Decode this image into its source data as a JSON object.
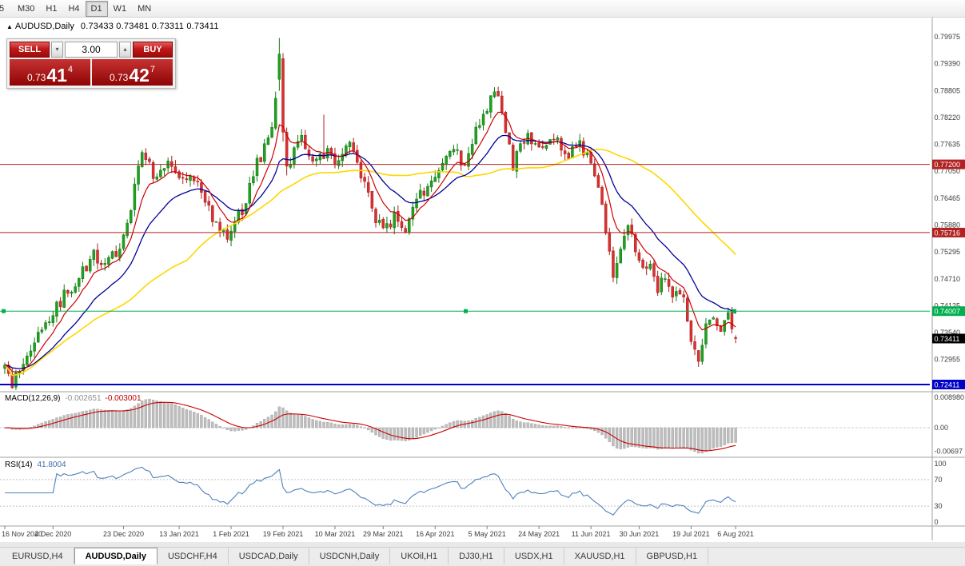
{
  "toolbar": {
    "timeframes": [
      "5",
      "M30",
      "H1",
      "H4",
      "D1",
      "W1",
      "MN"
    ],
    "active": "D1"
  },
  "chart": {
    "title": "AUDUSD,Daily",
    "ohlc": "0.73433 0.73481 0.73311 0.73411"
  },
  "trade_panel": {
    "sell_label": "SELL",
    "buy_label": "BUY",
    "volume": "3.00",
    "sell_price": {
      "big": "0.73",
      "mid": "41",
      "sup": "4"
    },
    "buy_price": {
      "big": "0.73",
      "mid": "42",
      "sup": "7"
    }
  },
  "indicators": {
    "macd": {
      "name": "MACD(12,26,9)",
      "value_main": "-0.002651",
      "value_signal": "-0.003001"
    },
    "rsi": {
      "name": "RSI(14)",
      "value": "41.8004"
    }
  },
  "tabs": [
    {
      "label": "EURUSD,H4",
      "active": false
    },
    {
      "label": "AUDUSD,Daily",
      "active": true
    },
    {
      "label": "USDCHF,H4",
      "active": false
    },
    {
      "label": "USDCAD,Daily",
      "active": false
    },
    {
      "label": "USDCNH,Daily",
      "active": false
    },
    {
      "label": "UKOil,H1",
      "active": false
    },
    {
      "label": "DJ30,H1",
      "active": false
    },
    {
      "label": "USDX,H1",
      "active": false
    },
    {
      "label": "XAUUSD,H1",
      "active": false
    },
    {
      "label": "GBPUSD,H1",
      "active": false
    }
  ],
  "chart_data": {
    "type": "candlestick",
    "symbol": "AUDUSD",
    "timeframe": "Daily",
    "bars": 198,
    "colors": {
      "up": "#1FA11F",
      "up_stroke": "#157815",
      "down": "#D93030",
      "down_stroke": "#A81F1F",
      "ma_fast": "#CC0000",
      "ma_mid": "#000099",
      "ma_slow": "#FFD700",
      "macd_hist": "#BDBDBD",
      "macd_hist_stroke": "#A3A3A3",
      "macd_signal": "#CC0000",
      "rsi_line": "#4F81BD"
    },
    "y_axis": {
      "labels": [
        "0.79975",
        "0.79390",
        "0.78805",
        "0.78220",
        "0.77635",
        "0.77050",
        "0.76465",
        "0.75880",
        "0.75295",
        "0.74710",
        "0.74125",
        "0.73540",
        "0.72955",
        "0.72370"
      ]
    },
    "x_axis": {
      "labels": [
        "16 Nov 2020",
        "4 Dec 2020",
        "23 Dec 2020",
        "13 Jan 2021",
        "1 Feb 2021",
        "19 Feb 2021",
        "10 Mar 2021",
        "29 Mar 2021",
        "16 Apr 2021",
        "5 May 2021",
        "24 May 2021",
        "11 Jun 2021",
        "30 Jun 2021",
        "19 Jul 2021",
        "6 Aug 2021"
      ],
      "bars": [
        0,
        13,
        32,
        47,
        61,
        75,
        89,
        102,
        116,
        130,
        144,
        158,
        171,
        185,
        197
      ]
    },
    "h_lines": [
      {
        "price": 0.772,
        "label": "0.77200",
        "color": "#B22222",
        "width": 1,
        "selected": false
      },
      {
        "price": 0.75716,
        "label": "0.75716",
        "color": "#B22222",
        "width": 1,
        "selected": false
      },
      {
        "price": 0.74007,
        "label": "0.74007",
        "color": "#00B050",
        "width": 1,
        "selected": true
      },
      {
        "price": 0.72411,
        "label": "0.72411",
        "color": "#0000C8",
        "width": 2,
        "selected": false
      }
    ],
    "current_price": {
      "value": 0.73411,
      "label": "0.73411",
      "tag_bg": "#000000"
    },
    "price_path": [
      [
        0,
        0.7272
      ],
      [
        2,
        0.7245
      ],
      [
        5,
        0.729
      ],
      [
        8,
        0.733
      ],
      [
        13,
        0.74
      ],
      [
        18,
        0.7455
      ],
      [
        24,
        0.752
      ],
      [
        28,
        0.7505
      ],
      [
        32,
        0.756
      ],
      [
        34,
        0.762
      ],
      [
        37,
        0.776
      ],
      [
        40,
        0.77
      ],
      [
        44,
        0.7715
      ],
      [
        47,
        0.769
      ],
      [
        52,
        0.769
      ],
      [
        56,
        0.76
      ],
      [
        60,
        0.7565
      ],
      [
        64,
        0.762
      ],
      [
        68,
        0.772
      ],
      [
        72,
        0.779
      ],
      [
        74,
        0.793
      ],
      [
        76,
        0.7715
      ],
      [
        80,
        0.777
      ],
      [
        84,
        0.772
      ],
      [
        87,
        0.7755
      ],
      [
        89,
        0.773
      ],
      [
        93,
        0.777
      ],
      [
        96,
        0.77
      ],
      [
        99,
        0.762
      ],
      [
        102,
        0.757
      ],
      [
        105,
        0.761
      ],
      [
        108,
        0.758
      ],
      [
        112,
        0.765
      ],
      [
        116,
        0.77
      ],
      [
        120,
        0.776
      ],
      [
        124,
        0.772
      ],
      [
        127,
        0.779
      ],
      [
        130,
        0.784
      ],
      [
        132,
        0.788
      ],
      [
        134,
        0.783
      ],
      [
        137,
        0.772
      ],
      [
        140,
        0.778
      ],
      [
        144,
        0.776
      ],
      [
        148,
        0.778
      ],
      [
        152,
        0.774
      ],
      [
        155,
        0.776
      ],
      [
        158,
        0.773
      ],
      [
        160,
        0.768
      ],
      [
        162,
        0.756
      ],
      [
        164,
        0.748
      ],
      [
        166,
        0.753
      ],
      [
        168,
        0.758
      ],
      [
        171,
        0.751
      ],
      [
        174,
        0.749
      ],
      [
        176,
        0.744
      ],
      [
        178,
        0.748
      ],
      [
        180,
        0.742
      ],
      [
        182,
        0.745
      ],
      [
        183,
        0.743
      ],
      [
        185,
        0.733
      ],
      [
        187,
        0.73
      ],
      [
        189,
        0.736
      ],
      [
        191,
        0.74
      ],
      [
        193,
        0.735
      ],
      [
        195,
        0.739
      ],
      [
        197,
        0.7341
      ]
    ],
    "overrides": {
      "74": {
        "o": 0.7905,
        "c": 0.796,
        "h": 0.7995,
        "l": 0.788
      },
      "75": {
        "o": 0.795,
        "c": 0.779,
        "h": 0.7962,
        "l": 0.777
      },
      "76": {
        "o": 0.779,
        "c": 0.7716,
        "h": 0.78,
        "l": 0.7696
      },
      "86": {
        "h": 0.7828
      },
      "197": {
        "o": 0.73433,
        "c": 0.73411,
        "h": 0.73481,
        "l": 0.73311
      }
    },
    "overlays": [
      {
        "name": "ma-fast",
        "period": 8,
        "type": "ema",
        "color": "#CC0000"
      },
      {
        "name": "ma-mid",
        "period": 20,
        "type": "ema",
        "color": "#000099"
      },
      {
        "name": "ma-slow",
        "period": 50,
        "type": "sma",
        "color": "#FFD700"
      }
    ],
    "macd_panel": {
      "axis": [
        {
          "v": 0.00898,
          "t": "0.008980"
        },
        {
          "v": 0,
          "t": "0.00"
        },
        {
          "v": -0.00697,
          "t": "-0.00697"
        }
      ]
    },
    "rsi_panel": {
      "axis": [
        {
          "v": 100,
          "t": "100"
        },
        {
          "v": 70,
          "t": "70"
        },
        {
          "v": 30,
          "t": "30"
        },
        {
          "v": 0,
          "t": "0"
        }
      ],
      "levels": [
        70,
        30
      ]
    }
  }
}
